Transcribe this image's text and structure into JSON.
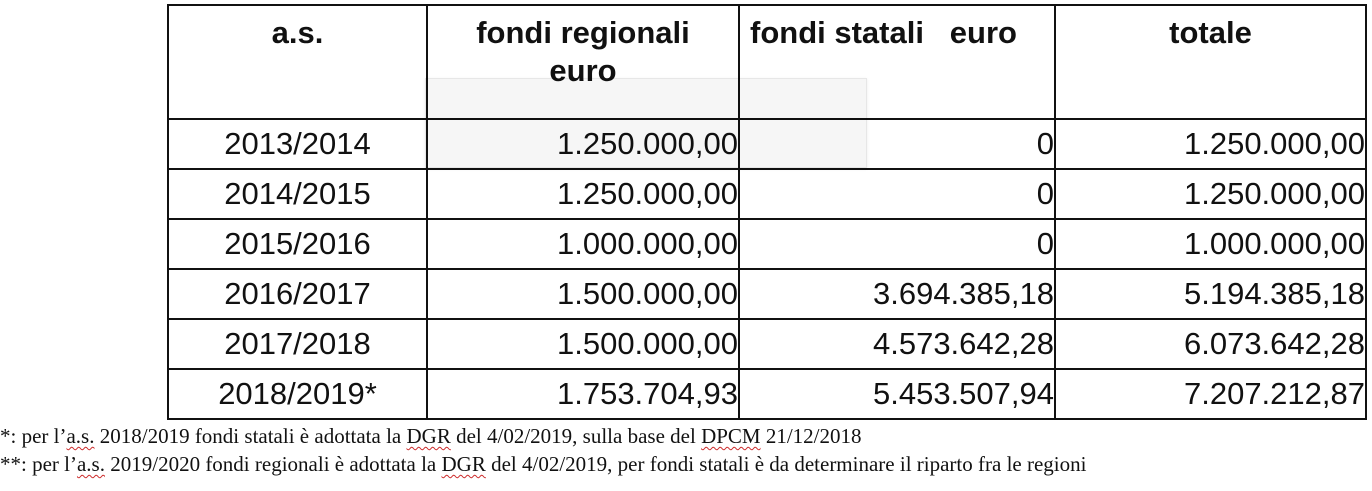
{
  "table": {
    "headers": {
      "year": "a.s.",
      "regional_line1": "fondi regionali",
      "regional_line2": "euro",
      "state": "fondi statali   euro",
      "total": "totale"
    },
    "rows": [
      {
        "year": "2013/2014",
        "regional": "1.250.000,00",
        "state": "0",
        "total": "1.250.000,00"
      },
      {
        "year": "2014/2015",
        "regional": "1.250.000,00",
        "state": "0",
        "total": "1.250.000,00"
      },
      {
        "year": "2015/2016",
        "regional": "1.000.000,00",
        "state": "0",
        "total": "1.000.000,00"
      },
      {
        "year": "2016/2017",
        "regional": "1.500.000,00",
        "state": "3.694.385,18",
        "total": "5.194.385,18"
      },
      {
        "year": "2017/2018",
        "regional": "1.500.000,00",
        "state": "4.573.642,28",
        "total": "6.073.642,28"
      },
      {
        "year": "2018/2019*",
        "regional": "1.753.704,93",
        "state": "5.453.507,94",
        "total": "7.207.212,87"
      }
    ]
  },
  "footnotes": {
    "n1": {
      "p1": "*: per l’",
      "p2": "a.s.",
      "p3": " 2018/2019 fondi statali è adottata la ",
      "p4": "DGR",
      "p5": " del 4/02/2019, sulla base del ",
      "p6": "DPCM",
      "p7": " 21/12/2018"
    },
    "n2": {
      "p1": "**: per l’",
      "p2": "a.s.",
      "p3": " 2019/2020 fondi regionali è adottata la ",
      "p4": "DGR",
      "p5": " del 4/02/2019, per fondi statali è da determinare il riparto fra le regioni"
    }
  }
}
